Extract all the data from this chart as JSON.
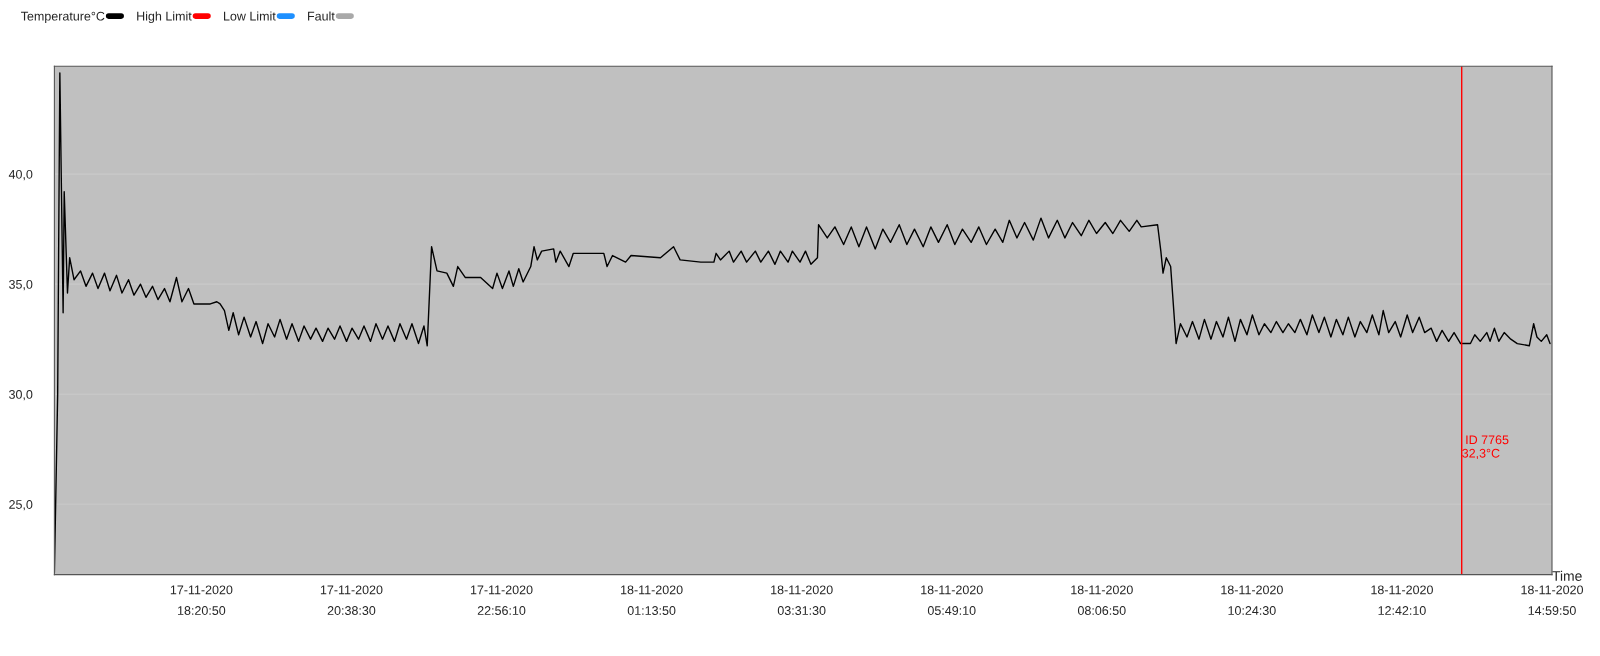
{
  "chart_data": {
    "type": "line",
    "xlabel": "Time",
    "xlim": [
      "2020-11-17T16:06",
      "2020-11-18T14:59:50"
    ],
    "xticks": [
      {
        "value": "2020-11-17T18:20:50",
        "label": "17-11-2020\n18:20:50"
      },
      {
        "value": "2020-11-17T20:38:30",
        "label": "17-11-2020\n20:38:30"
      },
      {
        "value": "2020-11-17T22:56:10",
        "label": "17-11-2020\n22:56:10"
      },
      {
        "value": "2020-11-18T01:13:50",
        "label": "18-11-2020\n01:13:50"
      },
      {
        "value": "2020-11-18T03:31:30",
        "label": "18-11-2020\n03:31:30"
      },
      {
        "value": "2020-11-18T05:49:10",
        "label": "18-11-2020\n05:49:10"
      },
      {
        "value": "2020-11-18T08:06:50",
        "label": "18-11-2020\n08:06:50"
      },
      {
        "value": "2020-11-18T10:24:30",
        "label": "18-11-2020\n10:24:30"
      },
      {
        "value": "2020-11-18T12:42:10",
        "label": "18-11-2020\n12:42:10"
      },
      {
        "value": "2020-11-18T14:59:50",
        "label": "18-11-2020\n14:59:50"
      }
    ],
    "ylim": [
      21.8,
      44.9
    ],
    "yticks": [
      {
        "value": 25,
        "label": "25,0"
      },
      {
        "value": 30,
        "label": "30,0"
      },
      {
        "value": 35,
        "label": "35,0"
      },
      {
        "value": 40,
        "label": "40,0"
      }
    ],
    "grid": "y",
    "legend": "top left",
    "marker": "none",
    "line_style": "solid",
    "ref_lines": [
      {
        "axis": "x",
        "value": "2020-11-18T13:37",
        "label": "ID 7765\n32,3°C",
        "color": "#ff0000"
      }
    ],
    "series": [
      {
        "name": "Temperature°C",
        "color": "#000000",
        "x": [
          "2020-11-17T16:06",
          "2020-11-17T16:09",
          "2020-11-17T16:11",
          "2020-11-17T16:14",
          "2020-11-17T16:15",
          "2020-11-17T16:18",
          "2020-11-17T16:20",
          "2020-11-17T16:24",
          "2020-11-17T16:30",
          "2020-11-17T16:35",
          "2020-11-17T16:41",
          "2020-11-17T16:46",
          "2020-11-17T16:52",
          "2020-11-17T16:57",
          "2020-11-17T17:03",
          "2020-11-17T17:08",
          "2020-11-17T17:14",
          "2020-11-17T17:19",
          "2020-11-17T17:25",
          "2020-11-17T17:30",
          "2020-11-17T17:36",
          "2020-11-17T17:41",
          "2020-11-17T17:47",
          "2020-11-17T17:52",
          "2020-11-17T17:58",
          "2020-11-17T18:03",
          "2020-11-17T18:09",
          "2020-11-17T18:14",
          "2020-11-17T18:29",
          "2020-11-17T18:35",
          "2020-11-17T18:38",
          "2020-11-17T18:42",
          "2020-11-17T18:46",
          "2020-11-17T18:50",
          "2020-11-17T18:55",
          "2020-11-17T19:00",
          "2020-11-17T19:06",
          "2020-11-17T19:11",
          "2020-11-17T19:17",
          "2020-11-17T19:22",
          "2020-11-17T19:28",
          "2020-11-17T19:33",
          "2020-11-17T19:39",
          "2020-11-17T19:44",
          "2020-11-17T19:50",
          "2020-11-17T19:55",
          "2020-11-17T20:01",
          "2020-11-17T20:06",
          "2020-11-17T20:12",
          "2020-11-17T20:17",
          "2020-11-17T20:23",
          "2020-11-17T20:28",
          "2020-11-17T20:34",
          "2020-11-17T20:39",
          "2020-11-17T20:45",
          "2020-11-17T20:50",
          "2020-11-17T20:56",
          "2020-11-17T21:01",
          "2020-11-17T21:07",
          "2020-11-17T21:12",
          "2020-11-17T21:18",
          "2020-11-17T21:23",
          "2020-11-17T21:29",
          "2020-11-17T21:34",
          "2020-11-17T21:40",
          "2020-11-17T21:45",
          "2020-11-17T21:48",
          "2020-11-17T21:52",
          "2020-11-17T21:57",
          "2020-11-17T22:06",
          "2020-11-17T22:12",
          "2020-11-17T22:16",
          "2020-11-17T22:23",
          "2020-11-17T22:37",
          "2020-11-17T22:48",
          "2020-11-17T22:52",
          "2020-11-17T22:57",
          "2020-11-17T23:03",
          "2020-11-17T23:07",
          "2020-11-17T23:12",
          "2020-11-17T23:16",
          "2020-11-17T23:23",
          "2020-11-17T23:26",
          "2020-11-17T23:29",
          "2020-11-17T23:33",
          "2020-11-17T23:44",
          "2020-11-17T23:46",
          "2020-11-17T23:50",
          "2020-11-17T23:58",
          "2020-11-18T00:02",
          "2020-11-18T00:30",
          "2020-11-18T00:33",
          "2020-11-18T00:38",
          "2020-11-18T00:50",
          "2020-11-18T00:55",
          "2020-11-18T01:22",
          "2020-11-18T01:34",
          "2020-11-18T01:40",
          "2020-11-18T01:59",
          "2020-11-18T02:11",
          "2020-11-18T02:13",
          "2020-11-18T02:17",
          "2020-11-18T02:25",
          "2020-11-18T02:29",
          "2020-11-18T02:36",
          "2020-11-18T02:41",
          "2020-11-18T02:49",
          "2020-11-18T02:54",
          "2020-11-18T03:01",
          "2020-11-18T03:07",
          "2020-11-18T03:12",
          "2020-11-18T03:19",
          "2020-11-18T03:23",
          "2020-11-18T03:30",
          "2020-11-18T03:35",
          "2020-11-18T03:40",
          "2020-11-18T03:46",
          "2020-11-18T03:47",
          "2020-11-18T03:55",
          "2020-11-18T04:02",
          "2020-11-18T04:10",
          "2020-11-18T04:17",
          "2020-11-18T04:24",
          "2020-11-18T04:31",
          "2020-11-18T04:39",
          "2020-11-18T04:46",
          "2020-11-18T04:53",
          "2020-11-18T05:01",
          "2020-11-18T05:08",
          "2020-11-18T05:15",
          "2020-11-18T05:23",
          "2020-11-18T05:30",
          "2020-11-18T05:37",
          "2020-11-18T05:45",
          "2020-11-18T05:52",
          "2020-11-18T05:59",
          "2020-11-18T06:07",
          "2020-11-18T06:14",
          "2020-11-18T06:21",
          "2020-11-18T06:29",
          "2020-11-18T06:36",
          "2020-11-18T06:42",
          "2020-11-18T06:49",
          "2020-11-18T06:56",
          "2020-11-18T07:04",
          "2020-11-18T07:11",
          "2020-11-18T07:18",
          "2020-11-18T07:26",
          "2020-11-18T07:33",
          "2020-11-18T07:40",
          "2020-11-18T07:48",
          "2020-11-18T07:55",
          "2020-11-18T08:02",
          "2020-11-18T08:10",
          "2020-11-18T08:17",
          "2020-11-18T08:24",
          "2020-11-18T08:32",
          "2020-11-18T08:39",
          "2020-11-18T08:43",
          "2020-11-18T08:58",
          "2020-11-18T09:01",
          "2020-11-18T09:03",
          "2020-11-18T09:06",
          "2020-11-18T09:10",
          "2020-11-18T09:15",
          "2020-11-18T09:19",
          "2020-11-18T09:25",
          "2020-11-18T09:30",
          "2020-11-18T09:36",
          "2020-11-18T09:41",
          "2020-11-18T09:47",
          "2020-11-18T09:52",
          "2020-11-18T09:58",
          "2020-11-18T10:03",
          "2020-11-18T10:09",
          "2020-11-18T10:14",
          "2020-11-18T10:20",
          "2020-11-18T10:25",
          "2020-11-18T10:31",
          "2020-11-18T10:36",
          "2020-11-18T10:42",
          "2020-11-18T10:47",
          "2020-11-18T10:53",
          "2020-11-18T10:58",
          "2020-11-18T11:04",
          "2020-11-18T11:09",
          "2020-11-18T11:15",
          "2020-11-18T11:20",
          "2020-11-18T11:26",
          "2020-11-18T11:31",
          "2020-11-18T11:37",
          "2020-11-18T11:42",
          "2020-11-18T11:48",
          "2020-11-18T11:53",
          "2020-11-18T11:59",
          "2020-11-18T12:04",
          "2020-11-18T12:10",
          "2020-11-18T12:15",
          "2020-11-18T12:21",
          "2020-11-18T12:25",
          "2020-11-18T12:30",
          "2020-11-18T12:36",
          "2020-11-18T12:41",
          "2020-11-18T12:47",
          "2020-11-18T12:52",
          "2020-11-18T12:58",
          "2020-11-18T13:03",
          "2020-11-18T13:09",
          "2020-11-18T13:14",
          "2020-11-18T13:19",
          "2020-11-18T13:25",
          "2020-11-18T13:30",
          "2020-11-18T13:36",
          "2020-11-18T13:45",
          "2020-11-18T13:49",
          "2020-11-18T13:54",
          "2020-11-18T14:00",
          "2020-11-18T14:03",
          "2020-11-18T14:07",
          "2020-11-18T14:11",
          "2020-11-18T14:16",
          "2020-11-18T14:22",
          "2020-11-18T14:28",
          "2020-11-18T14:39",
          "2020-11-18T14:43",
          "2020-11-18T14:46",
          "2020-11-18T14:50",
          "2020-11-18T14:55",
          "2020-11-18T14:58"
        ],
        "values": [
          21.9,
          30.0,
          44.6,
          33.7,
          39.2,
          34.6,
          36.2,
          35.2,
          35.6,
          34.9,
          35.5,
          34.8,
          35.5,
          34.7,
          35.4,
          34.6,
          35.2,
          34.5,
          35.0,
          34.4,
          34.9,
          34.3,
          34.8,
          34.2,
          35.3,
          34.2,
          34.8,
          34.1,
          34.1,
          34.2,
          34.1,
          33.8,
          32.9,
          33.7,
          32.7,
          33.5,
          32.6,
          33.3,
          32.3,
          33.2,
          32.6,
          33.4,
          32.5,
          33.2,
          32.4,
          33.1,
          32.5,
          33.0,
          32.4,
          33.0,
          32.5,
          33.1,
          32.4,
          33.0,
          32.5,
          33.1,
          32.4,
          33.2,
          32.5,
          33.1,
          32.4,
          33.2,
          32.5,
          33.2,
          32.3,
          33.1,
          32.2,
          36.7,
          35.6,
          35.5,
          34.9,
          35.8,
          35.3,
          35.3,
          34.8,
          35.5,
          34.8,
          35.6,
          34.9,
          35.7,
          35.1,
          35.8,
          36.7,
          36.1,
          36.5,
          36.6,
          36.0,
          36.5,
          35.8,
          36.4,
          36.4,
          35.8,
          36.3,
          36.0,
          36.3,
          36.2,
          36.7,
          36.1,
          36.0,
          36.0,
          36.4,
          36.1,
          36.5,
          36.0,
          36.5,
          36.0,
          36.5,
          36.0,
          36.5,
          35.9,
          36.5,
          36.0,
          36.5,
          36.0,
          36.5,
          35.9,
          36.2,
          37.7,
          37.1,
          37.6,
          36.8,
          37.6,
          36.7,
          37.6,
          36.6,
          37.5,
          36.9,
          37.7,
          36.8,
          37.5,
          36.7,
          37.6,
          36.9,
          37.7,
          36.8,
          37.5,
          36.9,
          37.6,
          36.8,
          37.5,
          36.9,
          37.9,
          37.1,
          37.8,
          37.0,
          38.0,
          37.1,
          37.9,
          37.1,
          37.8,
          37.2,
          37.9,
          37.3,
          37.8,
          37.3,
          37.9,
          37.4,
          37.9,
          37.6,
          37.7,
          36.5,
          35.5,
          36.2,
          35.8,
          32.3,
          33.2,
          32.6,
          33.3,
          32.5,
          33.4,
          32.5,
          33.3,
          32.6,
          33.5,
          32.4,
          33.4,
          32.7,
          33.6,
          32.7,
          33.2,
          32.8,
          33.3,
          32.8,
          33.2,
          32.8,
          33.4,
          32.7,
          33.6,
          32.8,
          33.5,
          32.6,
          33.4,
          32.7,
          33.5,
          32.6,
          33.3,
          32.8,
          33.6,
          32.7,
          33.8,
          32.8,
          33.3,
          32.6,
          33.6,
          32.8,
          33.5,
          32.8,
          33.0,
          32.4,
          32.9,
          32.4,
          32.8,
          32.3,
          32.3,
          32.7,
          32.4,
          32.8,
          32.4,
          33.0,
          32.4,
          32.8,
          32.5,
          32.3,
          32.2,
          33.2,
          32.6,
          32.4,
          32.7,
          32.3
        ]
      },
      {
        "name": "High Limit",
        "color": "#ff0000"
      },
      {
        "name": "Low Limit",
        "color": "#1e90ff"
      },
      {
        "name": "Fault",
        "color": "#a9a9a9"
      }
    ]
  }
}
